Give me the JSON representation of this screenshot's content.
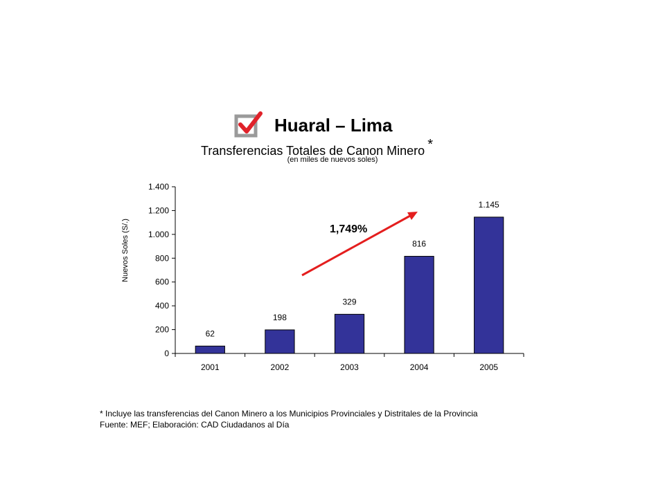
{
  "header": {
    "title": "Huaral – Lima",
    "subtitle": "Transferencias Totales de Canon Minero",
    "subtitle_mark": "*",
    "unit_note": "(en miles de nuevos soles)",
    "icon": "checkbox-checked-icon"
  },
  "chart_data": {
    "type": "bar",
    "categories": [
      "2001",
      "2002",
      "2003",
      "2004",
      "2005"
    ],
    "values": [
      62,
      198,
      329,
      816,
      1145
    ],
    "value_labels": [
      "62",
      "198",
      "329",
      "816",
      "1.145"
    ],
    "ylabel": "Nuevos Soles (S/.)",
    "xlabel": "",
    "ylim": [
      0,
      1400
    ],
    "yticks": [
      0,
      200,
      400,
      600,
      800,
      1000,
      1200,
      1400
    ],
    "ytick_labels": [
      "0",
      "200",
      "400",
      "600",
      "800",
      "1.000",
      "1.200",
      "1.400"
    ],
    "grid": false,
    "bar_color": "#333399",
    "annotation": {
      "text": "1,749%",
      "arrow_color": "#e41e1e"
    }
  },
  "footnotes": {
    "note": "* Incluye las transferencias del Canon Minero a los Municipios Provinciales y Distritales de la Provincia",
    "source": "Fuente: MEF; Elaboración: CAD Ciudadanos al Día"
  }
}
